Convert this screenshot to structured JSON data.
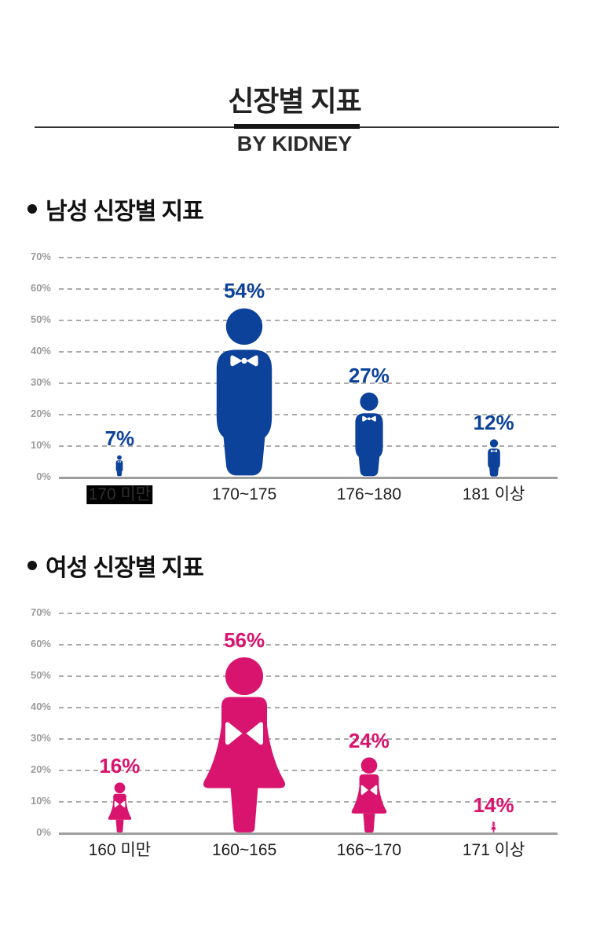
{
  "page": {
    "title": "신장별 지표",
    "subtitle": "BY KIDNEY"
  },
  "colors": {
    "male": "#0d429a",
    "female": "#d9146e",
    "grid": "#ababab",
    "axis": "#9e9e9e",
    "axis_label": "#9b9b9b",
    "text": "#1d1d1d",
    "highlight_bg": "#000000"
  },
  "y_axis": {
    "tick_labels": [
      "70%",
      "60%",
      "50%",
      "40%",
      "30%",
      "20%",
      "10%",
      "0%"
    ],
    "min": 0,
    "max": 70,
    "step": 10,
    "grid": "dashed"
  },
  "chart_data": [
    {
      "type": "bar",
      "title": "남성 신장별 지표",
      "gender": "male",
      "categories": [
        "170 미만",
        "170~175",
        "176~180",
        "181 이상"
      ],
      "values": [
        7,
        54,
        27,
        12
      ],
      "value_labels": [
        "7%",
        "54%",
        "27%",
        "12%"
      ],
      "ylim": [
        0,
        70
      ],
      "highlighted_category_index": 0,
      "tiny_figure_index": null
    },
    {
      "type": "bar",
      "title": "여성 신장별 지표",
      "gender": "female",
      "categories": [
        "160 미만",
        "160~165",
        "166~170",
        "171 이상"
      ],
      "values": [
        16,
        56,
        24,
        14
      ],
      "value_labels": [
        "16%",
        "56%",
        "24%",
        "14%"
      ],
      "ylim": [
        0,
        70
      ],
      "highlighted_category_index": null,
      "tiny_figure_index": 3
    }
  ]
}
